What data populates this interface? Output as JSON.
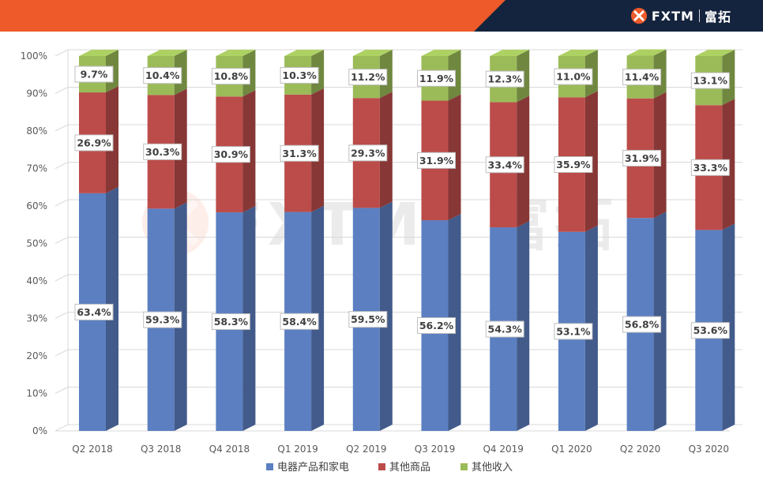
{
  "brand": {
    "name": "FXTM",
    "cn": "富拓"
  },
  "colors": {
    "orange": "#ee5a2a",
    "navy": "#14243e"
  },
  "chart_data": {
    "type": "bar",
    "stacked": true,
    "percent": true,
    "categories": [
      "Q2 2018",
      "Q3 2018",
      "Q4 2018",
      "Q1 2019",
      "Q2 2019",
      "Q3 2019",
      "Q4 2019",
      "Q1 2020",
      "Q2 2020",
      "Q3 2020"
    ],
    "series": [
      {
        "name": "电器产品和家电",
        "color": "#5b7fc1",
        "values": [
          63.4,
          59.3,
          58.3,
          58.4,
          59.5,
          56.2,
          54.3,
          53.1,
          56.8,
          53.6
        ]
      },
      {
        "name": "其他商品",
        "color": "#bb4c4a",
        "values": [
          26.9,
          30.3,
          30.9,
          31.3,
          29.3,
          31.9,
          33.4,
          35.9,
          31.9,
          33.3
        ]
      },
      {
        "name": "其他收入",
        "color": "#9bbb59",
        "values": [
          9.7,
          10.4,
          10.8,
          10.3,
          11.2,
          11.9,
          12.3,
          11.0,
          11.4,
          13.1
        ]
      }
    ],
    "value_suffix": "%",
    "ylim": [
      0,
      100
    ],
    "yticks": [
      "0%",
      "10%",
      "20%",
      "30%",
      "40%",
      "50%",
      "60%",
      "70%",
      "80%",
      "90%",
      "100%"
    ],
    "grid": true,
    "legend": "bottom",
    "watermark": {
      "text": "FXTM",
      "cn": "富拓"
    }
  }
}
